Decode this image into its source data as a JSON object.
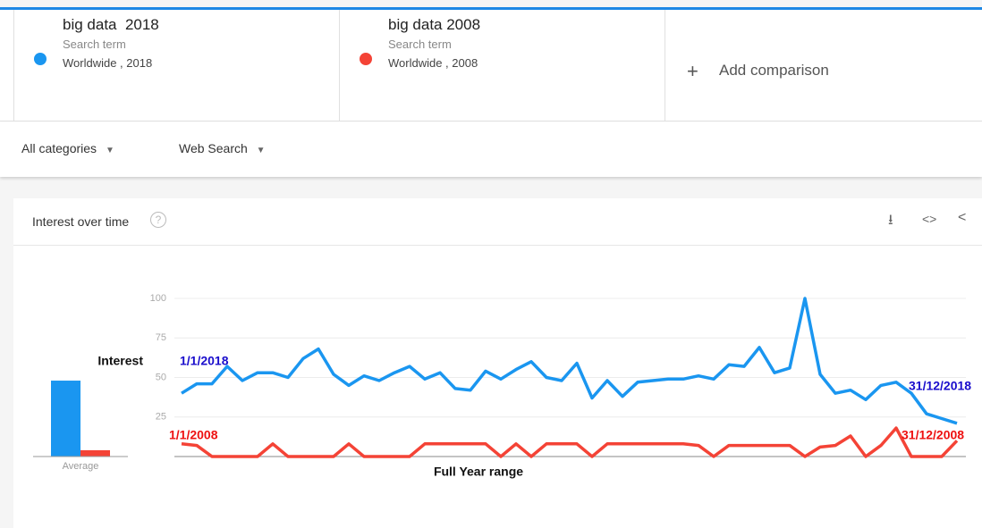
{
  "terms": [
    {
      "name": "big data  2018",
      "kind": "Search term",
      "region": "Worldwide , 2018"
    },
    {
      "name": "big data 2008",
      "kind": "Search term",
      "region": "Worldwide , 2008"
    }
  ],
  "add_comparison": "Add comparison",
  "filters": [
    "All categories",
    "Web Search"
  ],
  "card_title": "Interest over time",
  "chart_data": [
    {
      "type": "bar",
      "x_label": "Average",
      "series": [
        {
          "name": "big data  2018",
          "color": "#1a96f0",
          "values": [
            48
          ]
        },
        {
          "name": "big data 2008",
          "color": "#f44336",
          "values": [
            4
          ]
        }
      ],
      "ylim": [
        0,
        100
      ]
    },
    {
      "type": "line",
      "y_label": "Interest",
      "x_label": "Full Year range",
      "series": [
        {
          "name": "big data  2018",
          "color": "#1a96f0",
          "values": [
            40,
            46,
            46,
            57,
            48,
            53,
            53,
            50,
            62,
            68,
            52,
            45,
            51,
            48,
            53,
            57,
            49,
            53,
            43,
            42,
            54,
            49,
            55,
            60,
            50,
            48,
            59,
            37,
            48,
            38,
            47,
            48,
            49,
            49,
            51,
            49,
            58,
            57,
            69,
            53,
            56,
            100,
            52,
            40,
            42,
            36,
            45,
            47,
            40,
            27,
            24,
            21
          ]
        },
        {
          "name": "big data 2008",
          "color": "#f44336",
          "values": [
            8,
            7,
            0,
            0,
            0,
            0,
            8,
            0,
            0,
            0,
            0,
            8,
            0,
            0,
            0,
            0,
            8,
            8,
            8,
            8,
            8,
            0,
            8,
            0,
            8,
            8,
            8,
            0,
            8,
            8,
            8,
            8,
            8,
            8,
            7,
            0,
            7,
            7,
            7,
            7,
            7,
            0,
            6,
            7,
            13,
            0,
            7,
            18,
            0,
            0,
            0,
            10
          ]
        }
      ],
      "annotations": [
        {
          "text": "1/1/2018",
          "color": "#1a0dcc"
        },
        {
          "text": "31/12/2018",
          "color": "#1a0dcc"
        },
        {
          "text": "1/1/2008",
          "color": "#ee1111"
        },
        {
          "text": "31/12/2008",
          "color": "#ee1111"
        }
      ],
      "ylim": [
        0,
        100
      ],
      "yticks": [
        25,
        50,
        75,
        100
      ],
      "grid": true
    }
  ]
}
